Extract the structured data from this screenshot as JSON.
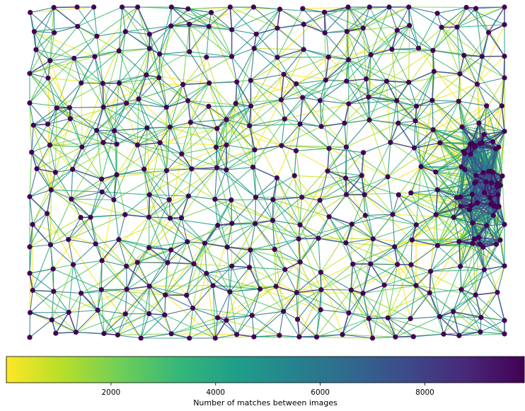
{
  "chart_data": {
    "type": "network",
    "description_of_marks": "match graph of image-camera nodes; edges colored by number of matches between images",
    "colormap": {
      "name": "viridis_r",
      "stops": [
        "#fde725",
        "#b5de2b",
        "#6ece58",
        "#35b779",
        "#1f9e89",
        "#26828e",
        "#31688e",
        "#3e4989",
        "#482878",
        "#440154"
      ]
    },
    "colorbar": {
      "label": "Number of matches between images",
      "range": [
        0,
        9900
      ],
      "ticks": [
        2000,
        4000,
        6000,
        8000
      ],
      "tick_labels": [
        "2000",
        "4000",
        "6000",
        "8000"
      ]
    },
    "node_color": "#440154",
    "graph_extent": {
      "xlim": [
        0,
        100
      ],
      "ylim": [
        0,
        100
      ]
    }
  }
}
